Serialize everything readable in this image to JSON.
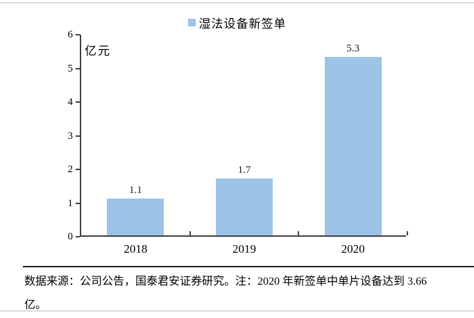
{
  "legend": {
    "label": "湿法设备新签单",
    "color": "#9DC3E6"
  },
  "chart_data": {
    "type": "bar",
    "title": "",
    "series_name": "湿法设备新签单",
    "categories": [
      "2018",
      "2019",
      "2020"
    ],
    "values": [
      1.1,
      1.7,
      5.3
    ],
    "value_labels": [
      "1.1",
      "1.7",
      "5.3"
    ],
    "unit_label": "亿元",
    "xlabel": "",
    "ylabel": "亿元",
    "ylim": [
      0,
      6
    ],
    "yticks": [
      0,
      1,
      2,
      3,
      4,
      5,
      6
    ],
    "bar_color": "#9DC3E6",
    "axis_color": "#3f3f3f",
    "legend_position": "top",
    "grid": false
  },
  "footer": {
    "lines": [
      "数据来源：公司公告，国泰君安证券研究。注：2020 年新签单中单片设备达到 3.66",
      "亿。"
    ]
  }
}
